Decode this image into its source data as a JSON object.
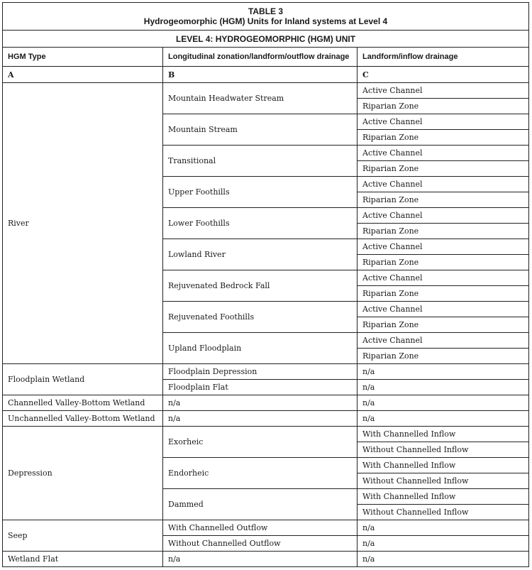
{
  "table": {
    "label": "TABLE 3",
    "title": "Hydrogeomorphic (HGM) Units for Inland systems at Level 4",
    "level_heading": "LEVEL 4: HYDROGEOMORPHIC (HGM) UNIT",
    "headers": [
      "HGM Type",
      "Longitudinal zonation/landform/outflow drainage",
      "Landform/inflow drainage"
    ],
    "column_letters": [
      "A",
      "B",
      "C"
    ],
    "groups": [
      {
        "type": "River",
        "subs": [
          {
            "b": "Mountain Headwater Stream",
            "c": [
              "Active Channel",
              "Riparian Zone"
            ]
          },
          {
            "b": "Mountain Stream",
            "c": [
              "Active Channel",
              "Riparian Zone"
            ]
          },
          {
            "b": "Transitional",
            "c": [
              "Active Channel",
              "Riparian Zone"
            ]
          },
          {
            "b": "Upper Foothills",
            "c": [
              "Active Channel",
              "Riparian Zone"
            ]
          },
          {
            "b": "Lower Foothills",
            "c": [
              "Active Channel",
              "Riparian Zone"
            ]
          },
          {
            "b": "Lowland River",
            "c": [
              "Active Channel",
              "Riparian Zone"
            ]
          },
          {
            "b": "Rejuvenated Bedrock Fall",
            "c": [
              "Active Channel",
              "Riparian Zone"
            ]
          },
          {
            "b": "Rejuvenated Foothills",
            "c": [
              "Active Channel",
              "Riparian Zone"
            ]
          },
          {
            "b": "Upland Floodplain",
            "c": [
              "Active Channel",
              "Riparian Zone"
            ]
          }
        ]
      },
      {
        "type": "Floodplain Wetland",
        "subs": [
          {
            "b": "Floodplain Depression",
            "c": [
              "n/a"
            ]
          },
          {
            "b": "Floodplain Flat",
            "c": [
              "n/a"
            ]
          }
        ]
      },
      {
        "type": "Channelled Valley-Bottom Wetland",
        "subs": [
          {
            "b": "n/a",
            "c": [
              "n/a"
            ]
          }
        ]
      },
      {
        "type": "Unchannelled Valley-Bottom Wetland",
        "subs": [
          {
            "b": "n/a",
            "c": [
              "n/a"
            ]
          }
        ]
      },
      {
        "type": "Depression",
        "subs": [
          {
            "b": "Exorheic",
            "c": [
              "With Channelled Inflow",
              "Without Channelled Inflow"
            ]
          },
          {
            "b": "Endorheic",
            "c": [
              "With Channelled Inflow",
              "Without Channelled Inflow"
            ]
          },
          {
            "b": "Dammed",
            "c": [
              "With Channelled Inflow",
              "Without Channelled Inflow"
            ]
          }
        ]
      },
      {
        "type": "Seep",
        "subs": [
          {
            "b": "With Channelled Outflow",
            "c": [
              "n/a"
            ]
          },
          {
            "b": "Without Channelled Outflow",
            "c": [
              "n/a"
            ]
          }
        ]
      },
      {
        "type": "Wetland Flat",
        "subs": [
          {
            "b": "n/a",
            "c": [
              "n/a"
            ]
          }
        ]
      }
    ]
  }
}
